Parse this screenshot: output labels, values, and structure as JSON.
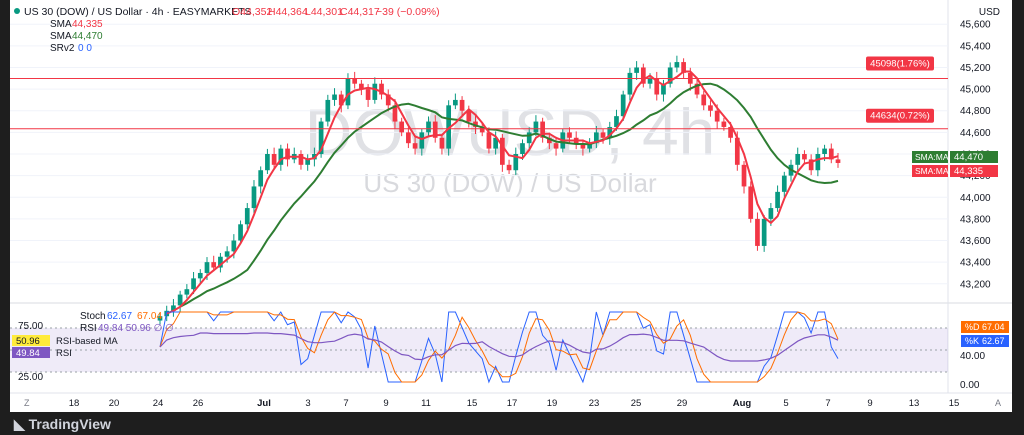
{
  "header": {
    "symbol_line": "US 30 (DOW) / US Dollar · 4h · EASYMARKETS",
    "ohlc": {
      "o": "O44,352",
      "h": "H44,364",
      "l": "L44,301",
      "c": "C44,317",
      "chg": "−39 (−0.09%)"
    },
    "indicators": [
      {
        "name": "SMA",
        "value": "44,335",
        "color": "#f23645"
      },
      {
        "name": "SMA",
        "value": "44,470",
        "color": "#2e7d32"
      },
      {
        "name": "SRv2",
        "value": "0  0",
        "color": "#2962ff"
      }
    ]
  },
  "watermark": {
    "ticker": "DOWUSD, 4h",
    "name": "US 30 (DOW) / US Dollar"
  },
  "axis": {
    "currency": "USD"
  },
  "levels": [
    {
      "value": 45098,
      "label": "45098(1.76%)"
    },
    {
      "value": 44634,
      "label": "44634(0.72%)"
    }
  ],
  "price_tags": [
    {
      "label": "SMA:MA",
      "value": "44,470",
      "color": "#2e7d32"
    },
    {
      "label": "SMA:MA",
      "value": "44,335",
      "color": "#f23645"
    }
  ],
  "oscillator": {
    "stoch_label": "Stoch",
    "stoch_k": "62.67",
    "stoch_d": "67.04",
    "rsi_label": "RSI",
    "rsi_values": "49.84  50.96  ∅  ∅",
    "rsi_based_ma_label": "RSI-based MA",
    "rsi_based_ma_value": "50.96",
    "rsi_value": "49.84",
    "tags": [
      {
        "label": "%D",
        "value": "67.04",
        "color": "#ff6d00"
      },
      {
        "label": "%K",
        "value": "62.67",
        "color": "#2962ff"
      }
    ],
    "left_ticks": [
      "75.00",
      "25.00"
    ],
    "right_ticks": [
      "40.00",
      "0.00"
    ]
  },
  "footer": {
    "logo": "TradingView"
  },
  "chart_data": {
    "type": "candlestick",
    "ylim": [
      43050,
      45750
    ],
    "yticks": [
      43200,
      43400,
      43600,
      43800,
      44000,
      44200,
      44400,
      44600,
      44800,
      45000,
      45200,
      45400,
      45600
    ],
    "x_labels": [
      "18",
      "20",
      "24",
      "26",
      "Jul",
      "3",
      "7",
      "9",
      "11",
      "15",
      "17",
      "19",
      "23",
      "25",
      "29",
      "Aug",
      "5",
      "7",
      "9",
      "13",
      "15"
    ],
    "closes": [
      42900,
      42950,
      43000,
      43100,
      43150,
      43250,
      43300,
      43400,
      43350,
      43450,
      43500,
      43600,
      43750,
      43900,
      44100,
      44250,
      44400,
      44300,
      44450,
      44350,
      44400,
      44300,
      44350,
      44400,
      44700,
      44900,
      44950,
      44850,
      45100,
      45050,
      45000,
      44900,
      45050,
      44950,
      44850,
      44700,
      44600,
      44500,
      44450,
      44600,
      44700,
      44550,
      44450,
      44850,
      44900,
      44800,
      44700,
      44650,
      44600,
      44450,
      44550,
      44300,
      44250,
      44400,
      44500,
      44600,
      44700,
      44550,
      44500,
      44450,
      44600,
      44550,
      44500,
      44450,
      44500,
      44600,
      44550,
      44650,
      44750,
      44950,
      45150,
      45200,
      45050,
      45100,
      44950,
      45050,
      45200,
      45250,
      45150,
      45050,
      44950,
      44850,
      44800,
      44700,
      44650,
      44550,
      44300,
      44100,
      43800,
      43550,
      43800,
      43900,
      44050,
      44200,
      44300,
      44400,
      44350,
      44250,
      44400,
      44450,
      44350,
      44317
    ],
    "series": [
      {
        "name": "SMA",
        "value": 44335
      },
      {
        "name": "SMA",
        "value": 44470
      }
    ]
  }
}
